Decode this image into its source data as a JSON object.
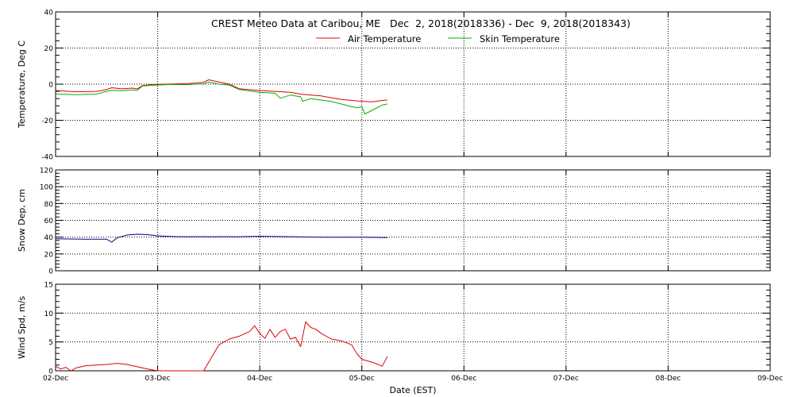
{
  "chart_data": {
    "type": "line",
    "title": "CREST Meteo Data at Caribou, ME   Dec  2, 2018(2018336) - Dec  9, 2018(2018343)",
    "xlabel": "Date (EST)",
    "x_range": [
      "2018-12-02",
      "2018-12-09"
    ],
    "x_tick_labels": [
      "02-Dec",
      "03-Dec",
      "04-Dec",
      "05-Dec",
      "06-Dec",
      "07-Dec",
      "08-Dec",
      "09-Dec"
    ],
    "grid": true,
    "legend_position": "top-center",
    "panels": [
      {
        "ylabel": "Temperature, Deg C",
        "ylim": [
          -40,
          40
        ],
        "y_ticks": [
          -40,
          -20,
          0,
          20,
          40
        ],
        "series": [
          {
            "name": "Air Temperature",
            "color": "#e00000",
            "points": [
              [
                2.0,
                -3.5
              ],
              [
                2.2,
                -4.2
              ],
              [
                2.4,
                -4.0
              ],
              [
                2.5,
                -3.0
              ],
              [
                2.55,
                -2.0
              ],
              [
                2.65,
                -2.6
              ],
              [
                2.75,
                -2.2
              ],
              [
                2.8,
                -2.6
              ],
              [
                2.85,
                -0.8
              ],
              [
                2.95,
                -0.2
              ],
              [
                3.1,
                0.0
              ],
              [
                3.3,
                0.3
              ],
              [
                3.45,
                1.0
              ],
              [
                3.5,
                2.4
              ],
              [
                3.55,
                1.8
              ],
              [
                3.6,
                1.2
              ],
              [
                3.7,
                0.0
              ],
              [
                3.8,
                -2.5
              ],
              [
                4.0,
                -3.5
              ],
              [
                4.15,
                -4.0
              ],
              [
                4.3,
                -4.5
              ],
              [
                4.4,
                -5.5
              ],
              [
                4.5,
                -6.0
              ],
              [
                4.6,
                -6.5
              ],
              [
                4.7,
                -7.5
              ],
              [
                4.8,
                -8.5
              ],
              [
                4.9,
                -9.0
              ],
              [
                5.0,
                -9.5
              ],
              [
                5.1,
                -9.8
              ],
              [
                5.2,
                -9.0
              ],
              [
                5.25,
                -8.8
              ]
            ]
          },
          {
            "name": "Skin Temperature",
            "color": "#00b000",
            "points": [
              [
                2.0,
                -5.5
              ],
              [
                2.2,
                -5.8
              ],
              [
                2.4,
                -5.5
              ],
              [
                2.5,
                -4.0
              ],
              [
                2.55,
                -3.4
              ],
              [
                2.65,
                -3.6
              ],
              [
                2.75,
                -3.2
              ],
              [
                2.8,
                -3.4
              ],
              [
                2.85,
                -1.0
              ],
              [
                2.95,
                -0.6
              ],
              [
                3.1,
                -0.2
              ],
              [
                3.3,
                -0.2
              ],
              [
                3.45,
                0.2
              ],
              [
                3.5,
                1.2
              ],
              [
                3.6,
                0.0
              ],
              [
                3.7,
                -0.5
              ],
              [
                3.8,
                -3.0
              ],
              [
                4.0,
                -4.5
              ],
              [
                4.15,
                -5.0
              ],
              [
                4.2,
                -7.8
              ],
              [
                4.3,
                -6.0
              ],
              [
                4.4,
                -7.0
              ],
              [
                4.42,
                -9.5
              ],
              [
                4.5,
                -8.0
              ],
              [
                4.6,
                -8.8
              ],
              [
                4.7,
                -9.5
              ],
              [
                4.8,
                -11.0
              ],
              [
                4.9,
                -12.5
              ],
              [
                4.96,
                -13.0
              ],
              [
                5.0,
                -12.5
              ],
              [
                5.03,
                -16.5
              ],
              [
                5.1,
                -14.5
              ],
              [
                5.2,
                -11.5
              ],
              [
                5.25,
                -11.0
              ]
            ]
          }
        ]
      },
      {
        "ylabel": "Snow Dep, cm",
        "ylim": [
          0,
          120
        ],
        "y_ticks": [
          0,
          20,
          40,
          60,
          80,
          100,
          120
        ],
        "series": [
          {
            "name": "",
            "color": "#000080",
            "points": [
              [
                2.0,
                38.0
              ],
              [
                2.3,
                37.5
              ],
              [
                2.5,
                37.5
              ],
              [
                2.55,
                34.0
              ],
              [
                2.6,
                39.0
              ],
              [
                2.7,
                42.5
              ],
              [
                2.8,
                43.5
              ],
              [
                2.9,
                43.0
              ],
              [
                3.0,
                41.5
              ],
              [
                3.2,
                40.5
              ],
              [
                3.5,
                40.5
              ],
              [
                3.8,
                40.5
              ],
              [
                4.0,
                41.0
              ],
              [
                4.3,
                40.5
              ],
              [
                4.6,
                40.0
              ],
              [
                5.0,
                40.0
              ],
              [
                5.25,
                39.5
              ]
            ]
          }
        ]
      },
      {
        "ylabel": "Wind Spd, m/s",
        "ylim": [
          0,
          15
        ],
        "y_ticks": [
          0,
          5,
          10,
          15
        ],
        "series": [
          {
            "name": "",
            "color": "#e00000",
            "points": [
              [
                2.0,
                0.8
              ],
              [
                2.05,
                0.3
              ],
              [
                2.1,
                0.6
              ],
              [
                2.15,
                0.0
              ],
              [
                2.2,
                0.5
              ],
              [
                2.3,
                0.9
              ],
              [
                2.4,
                1.0
              ],
              [
                2.5,
                1.1
              ],
              [
                2.6,
                1.3
              ],
              [
                2.7,
                1.1
              ],
              [
                2.8,
                0.7
              ],
              [
                2.9,
                0.3
              ],
              [
                3.0,
                0.0
              ],
              [
                3.45,
                0.0
              ],
              [
                3.5,
                1.5
              ],
              [
                3.55,
                3.0
              ],
              [
                3.6,
                4.5
              ],
              [
                3.7,
                5.5
              ],
              [
                3.8,
                6.0
              ],
              [
                3.9,
                6.8
              ],
              [
                3.95,
                7.8
              ],
              [
                4.0,
                6.5
              ],
              [
                4.05,
                5.6
              ],
              [
                4.1,
                7.2
              ],
              [
                4.15,
                5.8
              ],
              [
                4.2,
                6.8
              ],
              [
                4.25,
                7.2
              ],
              [
                4.3,
                5.5
              ],
              [
                4.35,
                5.8
              ],
              [
                4.4,
                4.2
              ],
              [
                4.45,
                8.5
              ],
              [
                4.5,
                7.5
              ],
              [
                4.55,
                7.2
              ],
              [
                4.6,
                6.5
              ],
              [
                4.7,
                5.5
              ],
              [
                4.8,
                5.2
              ],
              [
                4.9,
                4.5
              ],
              [
                4.95,
                3.0
              ],
              [
                5.0,
                2.0
              ],
              [
                5.1,
                1.5
              ],
              [
                5.2,
                0.8
              ],
              [
                5.25,
                2.5
              ]
            ]
          }
        ]
      }
    ]
  }
}
